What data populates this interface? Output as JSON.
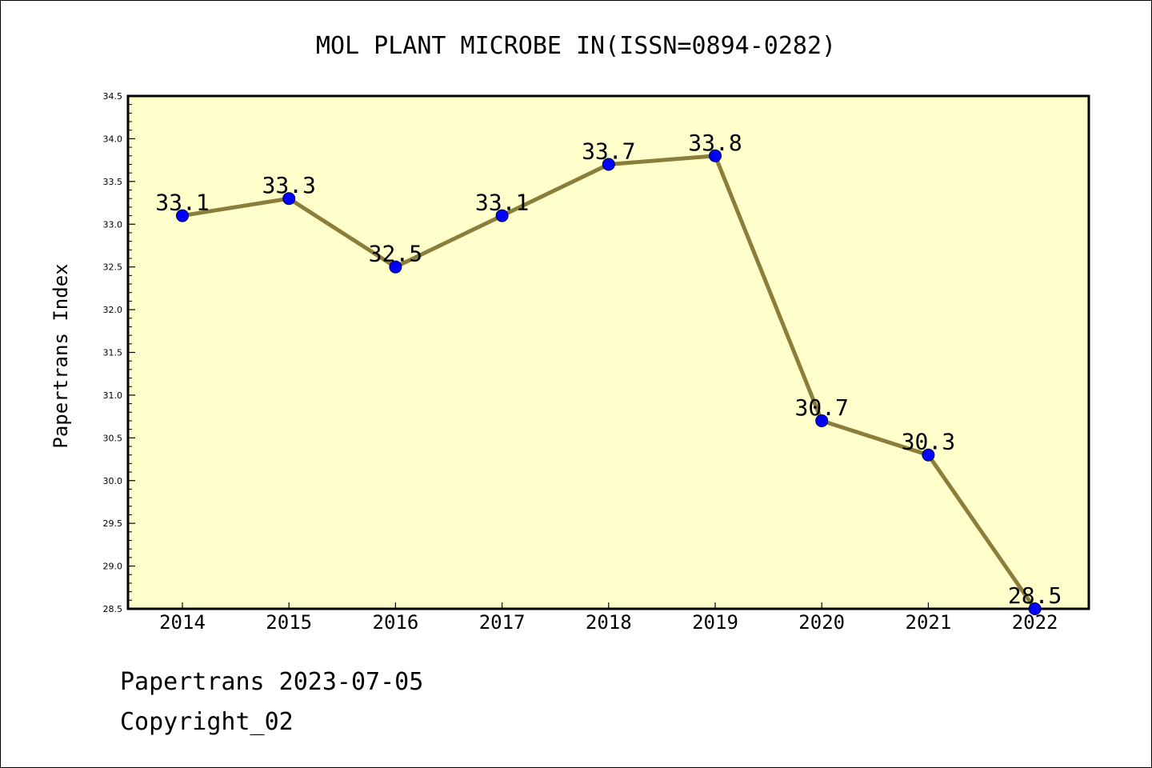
{
  "chart_data": {
    "type": "line",
    "title": "MOL PLANT MICROBE IN(ISSN=0894-0282)",
    "ylabel": "Papertrans Index",
    "xlabel": "",
    "categories": [
      "2014",
      "2015",
      "2016",
      "2017",
      "2018",
      "2019",
      "2020",
      "2021",
      "2022"
    ],
    "series": [
      {
        "values": [
          33.1,
          33.3,
          32.5,
          33.1,
          33.7,
          33.8,
          30.7,
          30.3,
          28.5
        ],
        "labels": [
          "33.1",
          "33.3",
          "32.5",
          "33.1",
          "33.7",
          "33.8",
          "30.7",
          "30.3",
          "28.5"
        ]
      }
    ],
    "ylim": [
      28.5,
      34.5
    ],
    "yticks": [
      "28.5",
      "29.0",
      "29.5",
      "30.0",
      "30.5",
      "31.0",
      "31.5",
      "32.0",
      "32.5",
      "33.0",
      "33.5",
      "34.0",
      "34.5"
    ],
    "grid": false,
    "colors": {
      "plot_background": "#ffffcc",
      "line": "#8b7d3a",
      "marker": "#0000ff"
    }
  },
  "footer": {
    "date_line": "Papertrans 2023-07-05",
    "copyright": "Copyright_02"
  }
}
